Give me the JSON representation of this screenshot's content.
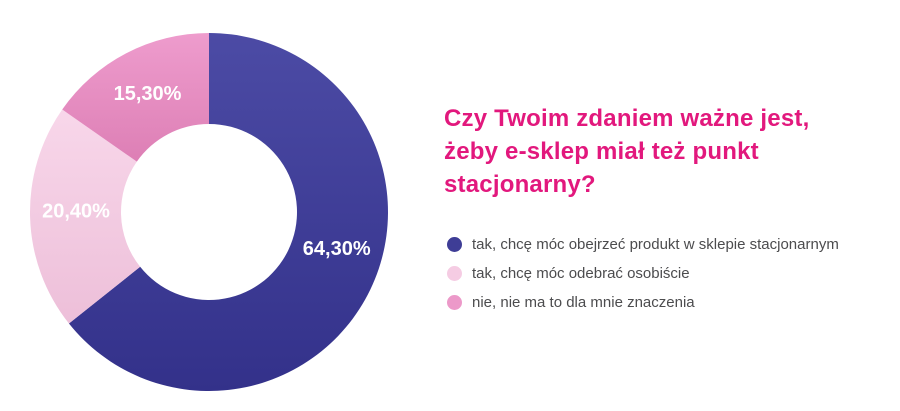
{
  "question": {
    "lines": [
      "Czy Twoim zdaniem ważne jest,",
      "żeby e-sklep miał też punkt",
      "stacjonarny?"
    ],
    "full_text": "Czy Twoim zdaniem ważne jest, żeby e-sklep miał też punkt stacjonarny?",
    "color": "#e2187d"
  },
  "chart_data": {
    "type": "pie",
    "subtype": "donut",
    "title": "Czy Twoim zdaniem ważne jest, żeby e-sklep miał też punkt stacjonarny?",
    "start_angle_deg": 0,
    "direction": "clockwise",
    "legend_position": "right",
    "value_label_color": "#ffffff",
    "slices": [
      {
        "label": "tak, chcę móc obejrzeć produkt w sklepie stacjonarnym",
        "value": 64.3,
        "display": "64,30%",
        "color": "#3e3d96",
        "gradient": [
          "#4c4ba5",
          "#33318a"
        ]
      },
      {
        "label": "tak, chcę móc odebrać osobiście",
        "value": 20.4,
        "display": "20,40%",
        "color": "#f5cce3",
        "gradient": [
          "#f8d7ea",
          "#edbfd9"
        ]
      },
      {
        "label": "nie, nie ma to dla mnie znaczenia",
        "value": 15.3,
        "display": "15,30%",
        "color": "#ec99c9",
        "gradient": [
          "#ee9ccd",
          "#dd7fb5"
        ]
      }
    ]
  },
  "legend_text_color": "#4c4c4e"
}
